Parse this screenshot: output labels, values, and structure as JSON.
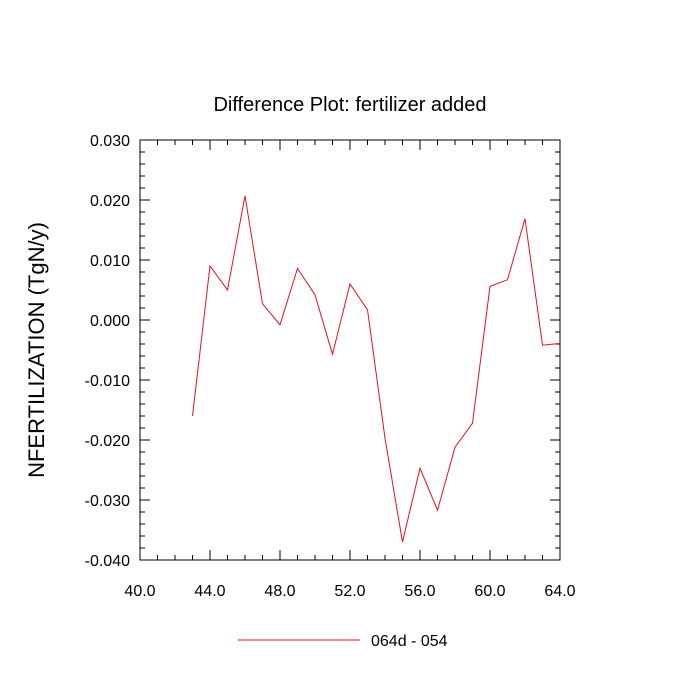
{
  "chart_data": {
    "type": "line",
    "title": "Difference Plot: fertilizer added",
    "xlabel": "",
    "ylabel": "NFERTILIZATION  (TgN/y)",
    "xlim": [
      40.0,
      64.0
    ],
    "ylim": [
      -0.04,
      0.03
    ],
    "x_major_ticks": [
      40.0,
      44.0,
      48.0,
      52.0,
      56.0,
      60.0,
      64.0
    ],
    "x_tick_labels": [
      "40.0",
      "44.0",
      "48.0",
      "52.0",
      "56.0",
      "60.0",
      "64.0"
    ],
    "y_major_ticks": [
      -0.04,
      -0.03,
      -0.02,
      -0.01,
      0.0,
      0.01,
      0.02,
      0.03
    ],
    "y_tick_labels": [
      "-0.040",
      "-0.030",
      "-0.020",
      "-0.010",
      "0.000",
      "0.010",
      "0.020",
      "0.030"
    ],
    "grid": false,
    "legend_position": "bottom-center",
    "series": [
      {
        "name": "064d - 054",
        "color": "#e8101a",
        "x": [
          43,
          44,
          45,
          46,
          47,
          48,
          49,
          50,
          51,
          52,
          53,
          54,
          55,
          56,
          57,
          58,
          59,
          60,
          61,
          62,
          63,
          64
        ],
        "y": [
          -0.016,
          0.009,
          0.005,
          0.0207,
          0.0027,
          -0.0008,
          0.0086,
          0.0042,
          -0.0057,
          0.006,
          0.0017,
          -0.0197,
          -0.037,
          -0.0247,
          -0.0317,
          -0.0212,
          -0.0172,
          0.0056,
          0.0067,
          0.0169,
          -0.0042,
          -0.0039
        ]
      }
    ]
  }
}
